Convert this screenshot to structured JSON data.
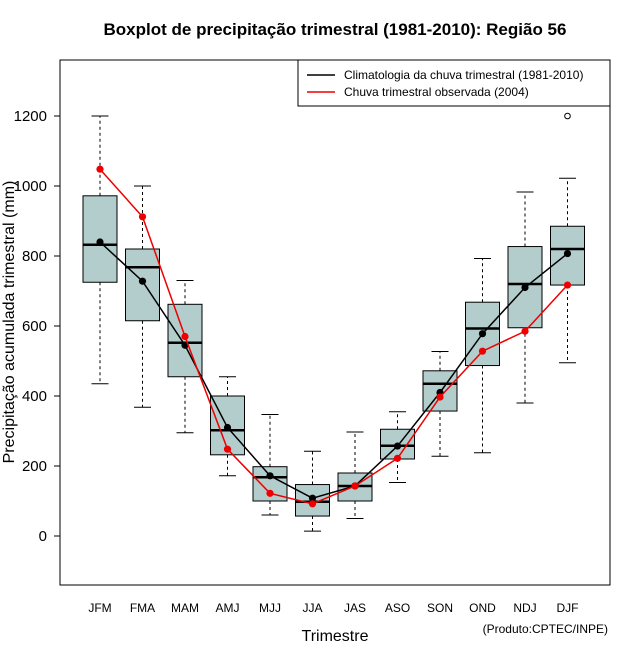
{
  "chart_data": {
    "type": "boxplot",
    "title": "Boxplot de precipitação trimestral (1981-2010): Região 56",
    "xlabel": "Trimestre",
    "ylabel": "Precipitação acumulada trimestral (mm)",
    "credit": "(Produto:CPTEC/INPE)",
    "ylim": [
      -140,
      1360
    ],
    "yticks": [
      0,
      200,
      400,
      600,
      800,
      1000,
      1200
    ],
    "categories": [
      "JFM",
      "FMA",
      "MAM",
      "AMJ",
      "MJJ",
      "JJA",
      "JAS",
      "ASO",
      "SON",
      "OND",
      "NDJ",
      "DJF"
    ],
    "boxes": [
      {
        "whisker_low": 435,
        "q1": 725,
        "median": 832,
        "q3": 972,
        "whisker_high": 1200,
        "outliers": []
      },
      {
        "whisker_low": 368,
        "q1": 615,
        "median": 768,
        "q3": 820,
        "whisker_high": 1000,
        "outliers": []
      },
      {
        "whisker_low": 295,
        "q1": 455,
        "median": 552,
        "q3": 662,
        "whisker_high": 730,
        "outliers": []
      },
      {
        "whisker_low": 172,
        "q1": 232,
        "median": 302,
        "q3": 400,
        "whisker_high": 455,
        "outliers": []
      },
      {
        "whisker_low": 60,
        "q1": 100,
        "median": 168,
        "q3": 198,
        "whisker_high": 347,
        "outliers": []
      },
      {
        "whisker_low": 14,
        "q1": 57,
        "median": 98,
        "q3": 147,
        "whisker_high": 242,
        "outliers": []
      },
      {
        "whisker_low": 50,
        "q1": 100,
        "median": 143,
        "q3": 180,
        "whisker_high": 297,
        "outliers": []
      },
      {
        "whisker_low": 153,
        "q1": 220,
        "median": 258,
        "q3": 305,
        "whisker_high": 355,
        "outliers": []
      },
      {
        "whisker_low": 228,
        "q1": 357,
        "median": 435,
        "q3": 472,
        "whisker_high": 527,
        "outliers": []
      },
      {
        "whisker_low": 238,
        "q1": 487,
        "median": 593,
        "q3": 668,
        "whisker_high": 793,
        "outliers": []
      },
      {
        "whisker_low": 380,
        "q1": 595,
        "median": 720,
        "q3": 827,
        "whisker_high": 983,
        "outliers": []
      },
      {
        "whisker_low": 495,
        "q1": 717,
        "median": 820,
        "q3": 885,
        "whisker_high": 1022,
        "outliers": [
          1200
        ]
      }
    ],
    "series": [
      {
        "name": "Climatologia da chuva trimestral (1981-2010)",
        "color": "#000000",
        "values": [
          840,
          728,
          545,
          310,
          172,
          108,
          143,
          257,
          410,
          578,
          710,
          807
        ]
      },
      {
        "name": "Chuva trimestral observada (2004)",
        "color": "#ee0000",
        "values": [
          1048,
          912,
          570,
          248,
          122,
          92,
          143,
          222,
          397,
          528,
          585,
          717
        ]
      }
    ],
    "box_fill": "#b3cccc",
    "legend_position": "top-right"
  }
}
